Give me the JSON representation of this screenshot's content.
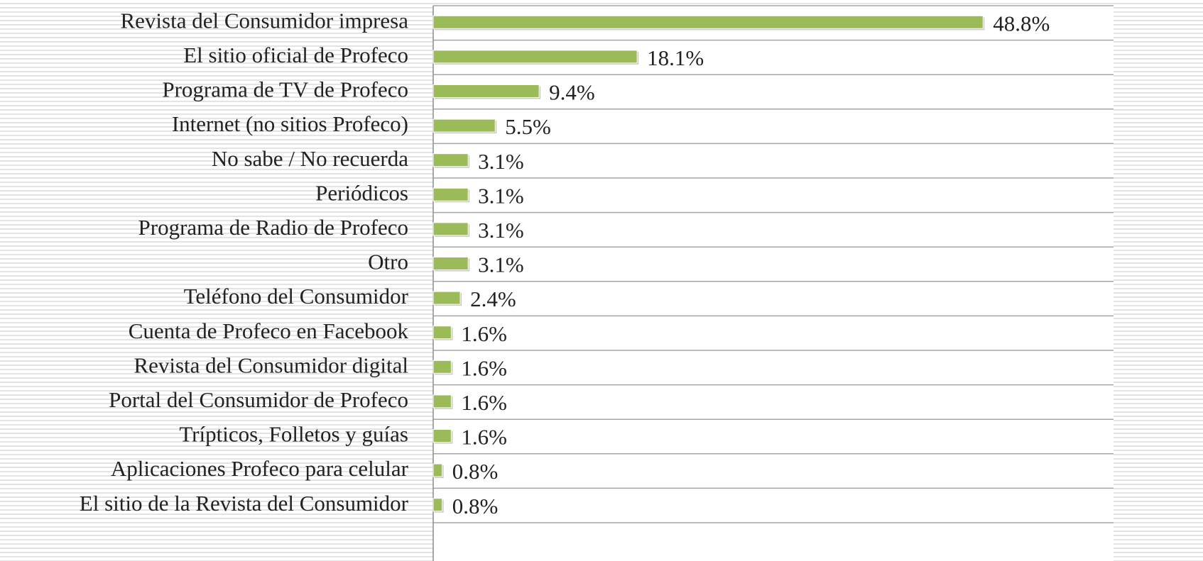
{
  "chart_data": {
    "type": "bar",
    "orientation": "horizontal",
    "categories": [
      "Revista del Consumidor impresa",
      "El sitio oficial de Profeco",
      "Programa de TV de Profeco",
      "Internet (no sitios Profeco)",
      "No sabe / No recuerda",
      "Periódicos",
      "Programa de Radio de Profeco",
      "Otro",
      "Teléfono del Consumidor",
      "Cuenta de Profeco en Facebook",
      "Revista del Consumidor digital",
      "Portal del Consumidor de Profeco",
      "Trípticos, Folletos y guías",
      "Aplicaciones Profeco para celular",
      "El sitio de la Revista del Consumidor"
    ],
    "values": [
      48.8,
      18.1,
      9.4,
      5.5,
      3.1,
      3.1,
      3.1,
      3.1,
      2.4,
      1.6,
      1.6,
      1.6,
      1.6,
      0.8,
      0.8
    ],
    "value_labels": [
      "48.8%",
      "18.1%",
      "9.4%",
      "5.5%",
      "3.1%",
      "3.1%",
      "3.1%",
      "3.1%",
      "2.4%",
      "1.6%",
      "1.6%",
      "1.6%",
      "1.6%",
      "0.8%",
      "0.8%"
    ],
    "color": "#9bbb59",
    "xlim": [
      0,
      60
    ]
  }
}
